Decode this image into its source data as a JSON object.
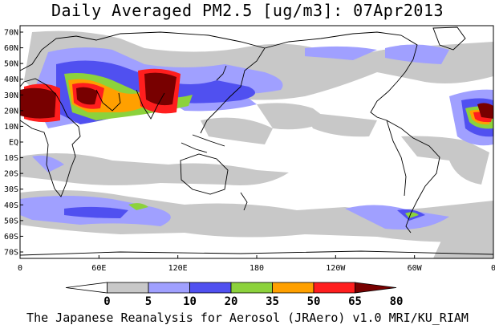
{
  "title": "Daily Averaged PM2.5 [ug/m3]: 07Apr2013",
  "footer": "The Japanese Reanalysis for Aerosol (JRAero) v1.0 MRI/KU_RIAM",
  "latitude_labels": [
    "70N",
    "60N",
    "50N",
    "40N",
    "30N",
    "20N",
    "10N",
    "EQ",
    "10S",
    "20S",
    "30S",
    "40S",
    "50S",
    "60S",
    "70S"
  ],
  "longitude_labels": [
    "0",
    "60E",
    "120E",
    "180",
    "120W",
    "60W",
    "0"
  ],
  "colorbar": {
    "thresholds": [
      "0",
      "5",
      "10",
      "20",
      "35",
      "50",
      "65",
      "80"
    ],
    "colors": [
      "#ffffff",
      "#c8c8c8",
      "#a0a0ff",
      "#5050f0",
      "#8cd23c",
      "#ffa000",
      "#ff1e1e",
      "#780000"
    ]
  },
  "map": {
    "land_color": "#ffffff",
    "coastline_color": "#000000",
    "frame_color": "#000000"
  }
}
